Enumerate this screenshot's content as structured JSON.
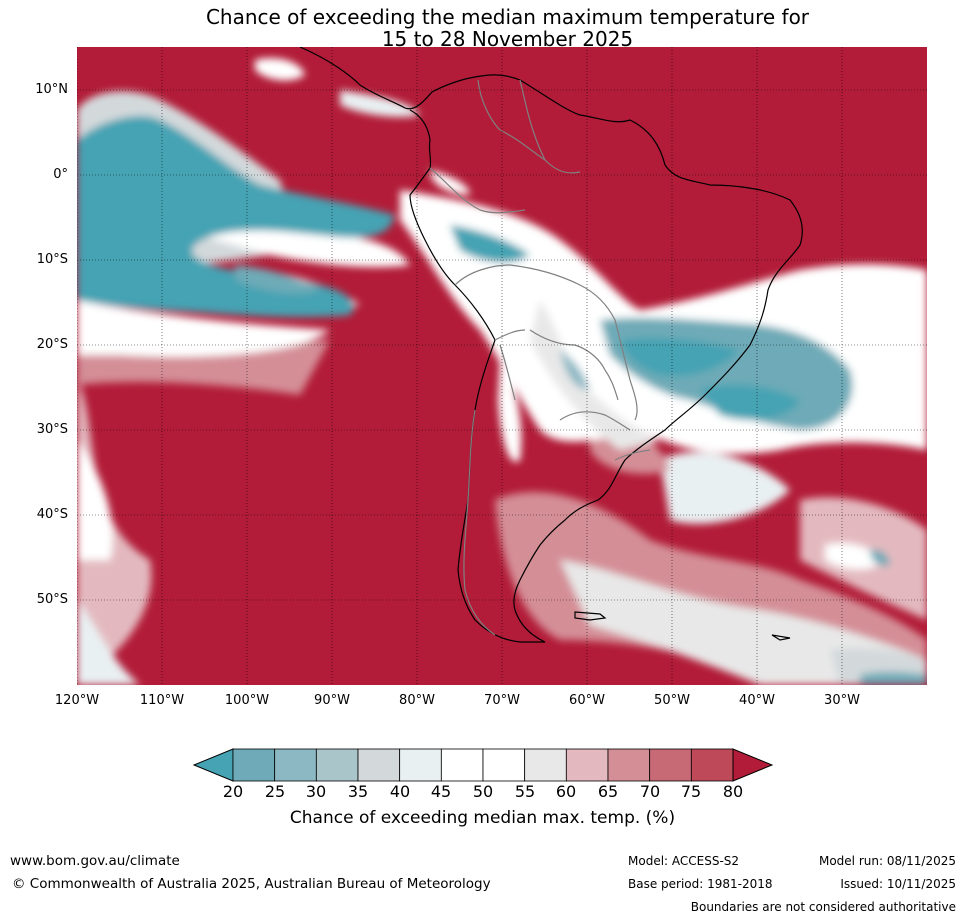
{
  "title_line1": "Chance of exceeding the median maximum temperature for",
  "title_line2": "15 to 28 November 2025",
  "lat_labels": [
    "10°N",
    "0°",
    "10°S",
    "20°S",
    "30°S",
    "40°S",
    "50°S"
  ],
  "lon_labels": [
    "120°W",
    "110°W",
    "100°W",
    "90°W",
    "80°W",
    "70°W",
    "60°W",
    "50°W",
    "40°W",
    "30°W"
  ],
  "colorbar": {
    "ticks": [
      "20",
      "25",
      "30",
      "35",
      "40",
      "45",
      "50",
      "55",
      "60",
      "65",
      "70",
      "75",
      "80"
    ],
    "colors": [
      "#45a3b3",
      "#6eaab7",
      "#8cb8c4",
      "#aac5ca",
      "#d3d9db",
      "#e9f0f2",
      "#ffffff",
      "#ffffff",
      "#e8e8e8",
      "#e3b9bf",
      "#d48e96",
      "#c76a75",
      "#be4a59",
      "#b21c38"
    ],
    "label": "Chance of exceeding median max. temp. (%)"
  },
  "footer": {
    "website": "www.bom.gov.au/climate",
    "copyright": "© Commonwealth of Australia 2025, Australian Bureau of Meteorology",
    "model": "Model: ACCESS-S2",
    "base_period": "Base period: 1981-2018",
    "model_run": "Model run: 08/11/2025",
    "issued": "Issued: 10/11/2025",
    "disclaimer": "Boundaries are not considered authoritative"
  }
}
